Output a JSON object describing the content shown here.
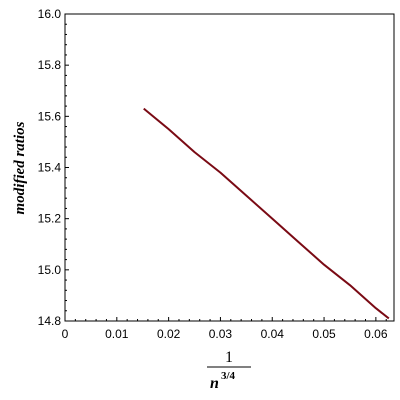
{
  "chart_data": {
    "type": "line",
    "title": "",
    "xlabel": {
      "numerator": "1",
      "base": "n",
      "exponent": "3/4"
    },
    "ylabel": "modified ratios",
    "xlim": [
      0,
      0.0635
    ],
    "ylim": [
      14.8,
      16.0
    ],
    "xticks": [
      0,
      0.01,
      0.02,
      0.03,
      0.04,
      0.05,
      0.06
    ],
    "xtick_labels": [
      "0",
      "0.01",
      "0.02",
      "0.03",
      "0.04",
      "0.05",
      "0.06"
    ],
    "yticks": [
      14.8,
      15.0,
      15.2,
      15.4,
      15.6,
      15.8,
      16.0
    ],
    "ytick_labels": [
      "14.8",
      "15.0",
      "15.2",
      "15.4",
      "15.6",
      "15.8",
      "16.0"
    ],
    "grid": false,
    "series": [
      {
        "color": "#7a0a14",
        "x": [
          0.0152,
          0.02,
          0.025,
          0.03,
          0.035,
          0.04,
          0.045,
          0.05,
          0.055,
          0.06,
          0.0625
        ],
        "y": [
          15.63,
          15.55,
          15.46,
          15.38,
          15.29,
          15.2,
          15.11,
          15.02,
          14.94,
          14.85,
          14.81
        ]
      }
    ]
  }
}
